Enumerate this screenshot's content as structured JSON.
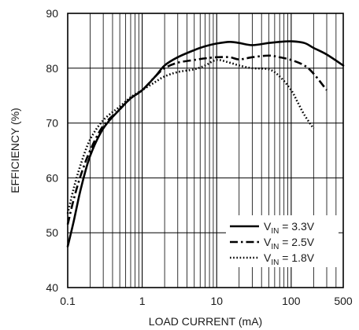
{
  "chart_data": {
    "type": "line",
    "xlabel": "LOAD CURRENT (mA)",
    "ylabel": "EFFICIENCY (%)",
    "x_scale": "log",
    "xlim": [
      0.1,
      500
    ],
    "ylim": [
      40,
      90
    ],
    "grid": true,
    "legend_position": "bottom-right",
    "x_ticks": [
      0.1,
      1,
      10,
      100,
      500
    ],
    "x_tick_labels": [
      "0.1",
      "1",
      "10",
      "100",
      "500"
    ],
    "y_ticks": [
      40,
      50,
      60,
      70,
      80,
      90
    ],
    "y_tick_labels": [
      "40",
      "50",
      "60",
      "70",
      "80",
      "90"
    ],
    "series": [
      {
        "name": "VIN = 3.3V",
        "name_parts": {
          "main": "V",
          "sub": "IN",
          "rest": " = 3.3V"
        },
        "style": "solid",
        "x": [
          0.1,
          0.12,
          0.15,
          0.2,
          0.3,
          0.5,
          0.7,
          1,
          1.5,
          2,
          3,
          5,
          7,
          10,
          15,
          20,
          30,
          50,
          70,
          100,
          150,
          200,
          300,
          500
        ],
        "y": [
          47.5,
          52,
          58,
          64,
          69,
          72.5,
          74.5,
          76,
          78.5,
          80.5,
          82,
          83.3,
          84,
          84.5,
          84.8,
          84.6,
          84.2,
          84.6,
          84.8,
          84.9,
          84.6,
          83.7,
          82.5,
          80.5
        ]
      },
      {
        "name": "VIN = 2.5V",
        "name_parts": {
          "main": "V",
          "sub": "IN",
          "rest": " = 2.5V"
        },
        "style": "dash-dot",
        "x": [
          0.1,
          0.12,
          0.15,
          0.2,
          0.3,
          0.5,
          0.7,
          1,
          1.5,
          2,
          3,
          5,
          7,
          10,
          15,
          20,
          30,
          50,
          70,
          100,
          150,
          200,
          300
        ],
        "y": [
          51.5,
          56,
          60.5,
          65,
          69.5,
          72.5,
          74.5,
          76,
          78.5,
          80,
          81,
          81.5,
          81.8,
          82,
          82,
          81.6,
          82,
          82.3,
          82,
          81.5,
          80.5,
          79,
          76
        ]
      },
      {
        "name": "VIN = 1.8V",
        "name_parts": {
          "main": "V",
          "sub": "IN",
          "rest": " = 1.8V"
        },
        "style": "dotted",
        "x": [
          0.1,
          0.12,
          0.15,
          0.2,
          0.3,
          0.5,
          0.7,
          1,
          1.5,
          2,
          3,
          5,
          7,
          10,
          15,
          20,
          30,
          50,
          70,
          100,
          120,
          150,
          200
        ],
        "y": [
          53.5,
          58,
          62.5,
          67,
          70.5,
          73,
          74.7,
          76,
          77.5,
          78.5,
          79.3,
          79.8,
          80.5,
          81.5,
          81,
          80.5,
          80,
          79.8,
          78.5,
          76,
          74,
          71.5,
          69
        ]
      }
    ]
  }
}
